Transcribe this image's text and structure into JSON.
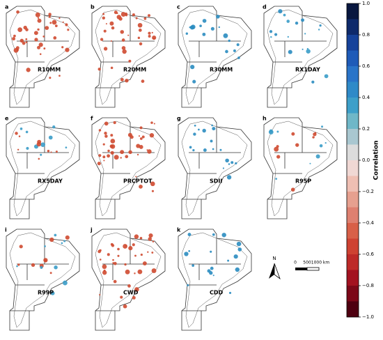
{
  "panels": [
    {
      "letter": "a",
      "label": "R10MM"
    },
    {
      "letter": "b",
      "label": "R20MM"
    },
    {
      "letter": "c",
      "label": "R30MM"
    },
    {
      "letter": "d",
      "label": "RX1DAY"
    },
    {
      "letter": "e",
      "label": "RX5DAY"
    },
    {
      "letter": "f",
      "label": "PRCPTOT"
    },
    {
      "letter": "g",
      "label": "SDII"
    },
    {
      "letter": "h",
      "label": "R95P"
    },
    {
      "letter": "i",
      "label": "R99P"
    },
    {
      "letter": "j",
      "label": "CWD"
    },
    {
      "letter": "k",
      "label": "CDD"
    }
  ],
  "colorbar": {
    "title": "Correlation",
    "lim": [
      -1.0,
      1.0
    ],
    "ticks": [
      {
        "value": 1.0,
        "label": "1.0"
      },
      {
        "value": 0.8,
        "label": "0.8"
      },
      {
        "value": 0.6,
        "label": "0.6"
      },
      {
        "value": 0.4,
        "label": "0.4"
      },
      {
        "value": 0.2,
        "label": "0.2"
      },
      {
        "value": 0.0,
        "label": "0.0"
      },
      {
        "value": -0.2,
        "label": "−0.2"
      },
      {
        "value": -0.4,
        "label": "−0.4"
      },
      {
        "value": -0.6,
        "label": "−0.6"
      },
      {
        "value": -0.8,
        "label": "−0.8"
      },
      {
        "value": -1.0,
        "label": "−1.0"
      }
    ],
    "colors": [
      "#08173f",
      "#0e2a6b",
      "#16429a",
      "#1f5bb8",
      "#2a74c8",
      "#2f8ac8",
      "#3d9fc9",
      "#6fb7c8",
      "#a9c7d0",
      "#dcdcdc",
      "#f0d8d4",
      "#efbfb3",
      "#e6a08f",
      "#de8070",
      "#d86048",
      "#ce4232",
      "#bd2a28",
      "#a31220",
      "#7c0818",
      "#4e0010"
    ]
  },
  "north": "N",
  "scale_bar": [
    "0",
    "500",
    "1000 km"
  ]
}
